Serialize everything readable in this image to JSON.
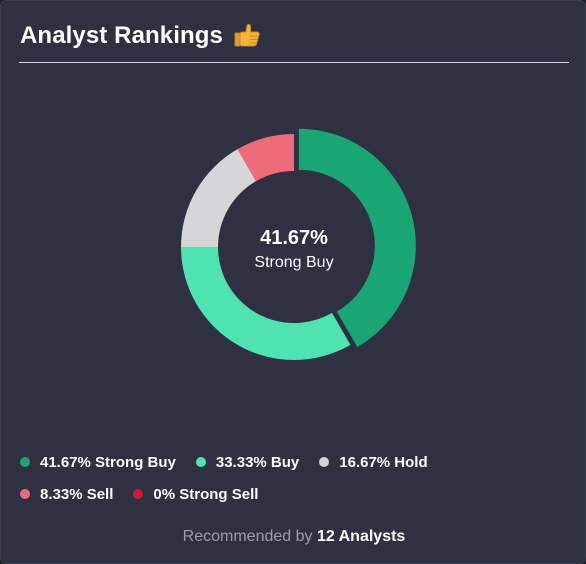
{
  "header": {
    "title": "Analyst Rankings",
    "icon": "thumbs-up-icon"
  },
  "chart_data": {
    "type": "pie",
    "variant": "donut",
    "center": {
      "value": "41.67%",
      "label": "Strong Buy"
    },
    "slices": [
      {
        "label": "Strong Buy",
        "value": 41.67,
        "display": "41.67% Strong Buy",
        "color": "#1aa674"
      },
      {
        "label": "Buy",
        "value": 33.33,
        "display": "33.33% Buy",
        "color": "#4fe3b2"
      },
      {
        "label": "Hold",
        "value": 16.67,
        "display": "16.67% Hold",
        "color": "#d6d6d8"
      },
      {
        "label": "Sell",
        "value": 8.33,
        "display": "8.33% Sell",
        "color": "#ee6b7a"
      },
      {
        "label": "Strong Sell",
        "value": 0,
        "display": "0% Strong Sell",
        "color": "#d1192f"
      }
    ],
    "highlighted": "Strong Buy"
  },
  "footer": {
    "prefix": "Recommended by",
    "count_label": "12 Analysts"
  }
}
